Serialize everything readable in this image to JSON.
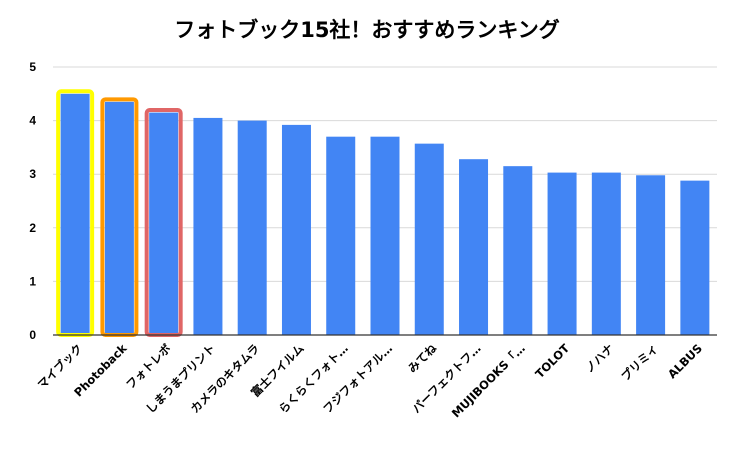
{
  "chart_data": {
    "type": "bar",
    "title": "フォトブック15社！おすすめランキング",
    "xlabel": "",
    "ylabel": "",
    "ylim": [
      0,
      5
    ],
    "yticks": [
      0,
      1,
      2,
      3,
      4,
      5
    ],
    "grid": true,
    "bar_color": "#4285f4",
    "categories": [
      "マイブック",
      "Photoback",
      "フォトレボ",
      "しまうまプリント",
      "カメラのキタムラ",
      "富士フイルム",
      "らくらくフォト…",
      "フジフォトアル…",
      "みてね",
      "パーフェクトフ…",
      "MUJIBOOKS「…",
      "TOLOT",
      "ノハナ",
      "プリミィ",
      "ALBUS"
    ],
    "values": [
      4.5,
      4.35,
      4.15,
      4.05,
      4.0,
      3.92,
      3.7,
      3.7,
      3.57,
      3.28,
      3.15,
      3.03,
      3.03,
      2.98,
      2.88
    ],
    "highlights": [
      {
        "index": 0,
        "color": "#ffff00"
      },
      {
        "index": 1,
        "color": "#ff9900"
      },
      {
        "index": 2,
        "color": "#e06666"
      }
    ]
  }
}
